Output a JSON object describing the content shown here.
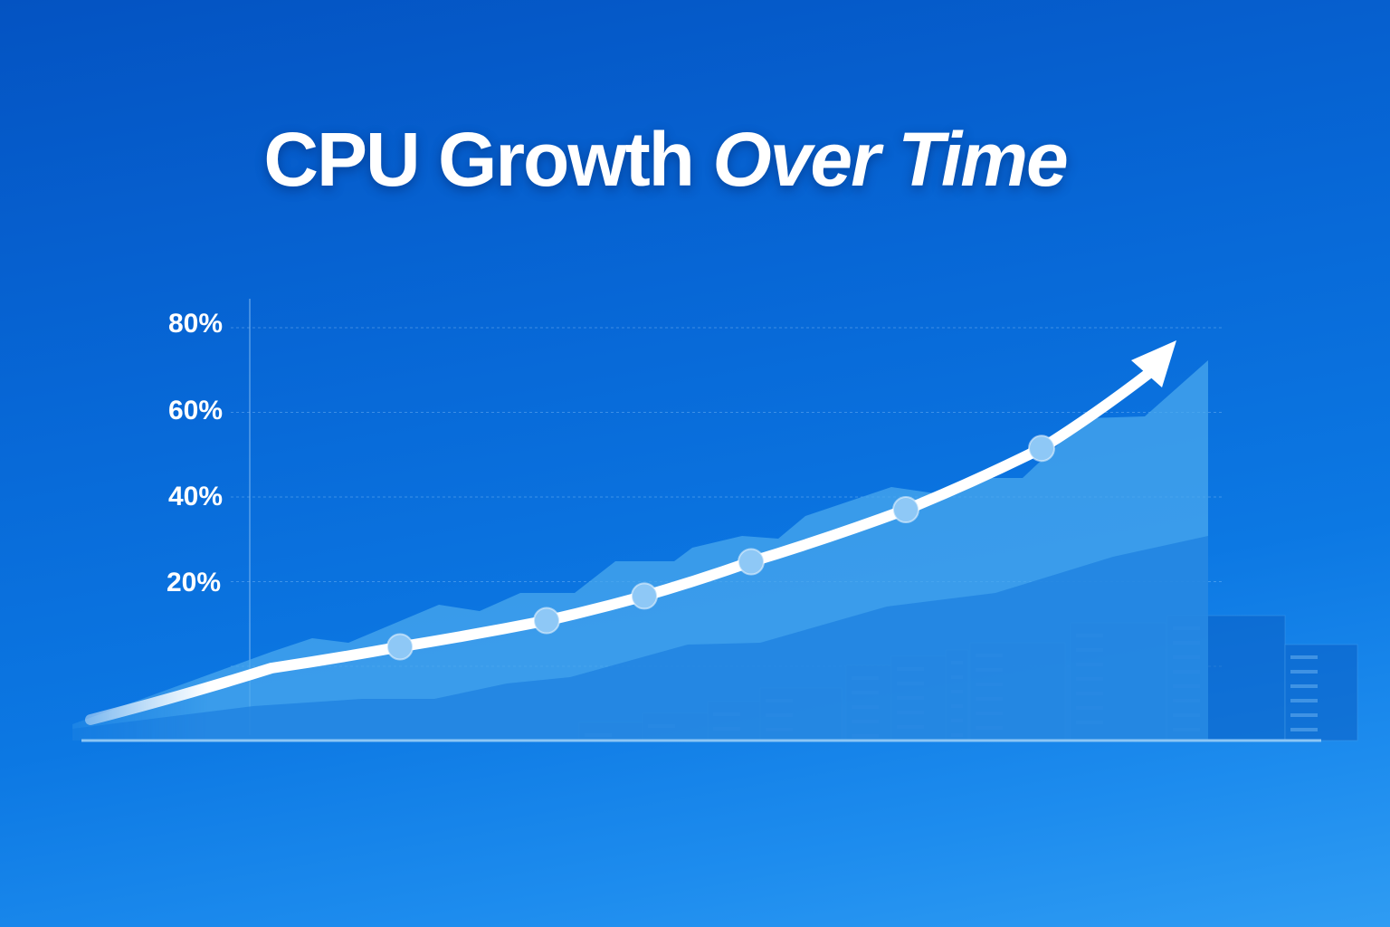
{
  "chart_data": {
    "type": "line",
    "title": "CPU Growth",
    "title_emphasis": "Over Time",
    "xlabel": "",
    "ylabel": "",
    "ylim": [
      0,
      80
    ],
    "yticks": [
      "20%",
      "40%",
      "60%",
      "80%"
    ],
    "ytick_values": [
      20,
      40,
      60,
      80
    ],
    "grid": true,
    "series": [
      {
        "values": [
          4.6,
          10.8,
          16.6,
          24.7,
          37.0,
          51.5
        ],
        "color": "#ffffff",
        "marker_color": "#8ec8f6"
      }
    ],
    "trend_arrow": true,
    "background_colors": [
      "#0453c2",
      "#2f9cf3"
    ],
    "area_color": "#4fb0f0"
  }
}
